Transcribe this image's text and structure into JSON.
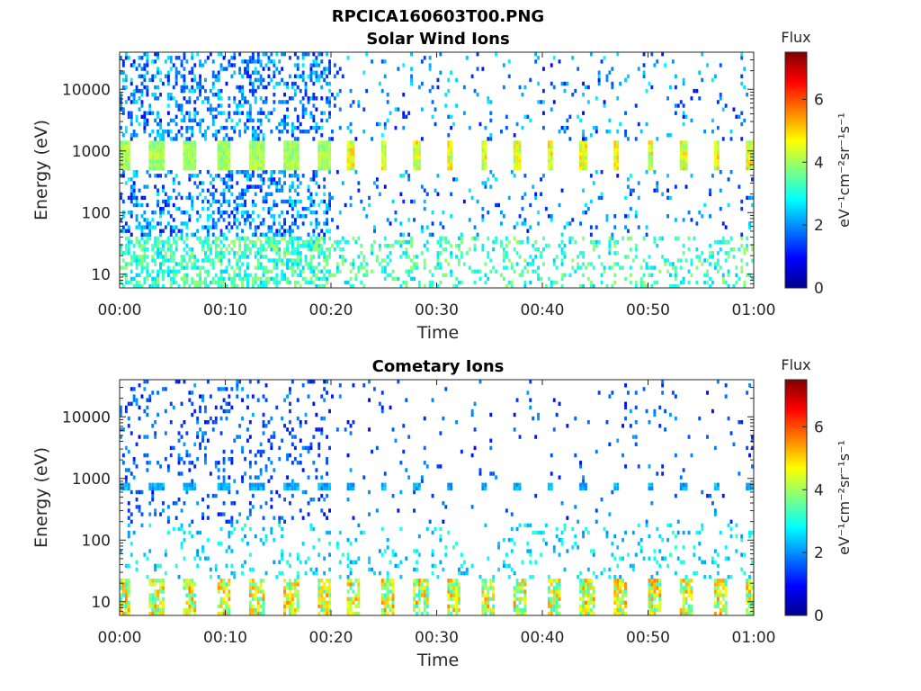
{
  "figure_title": "RPCICA160603T00.PNG",
  "colors": {
    "axis": "#262626",
    "grid": "#262626"
  },
  "colormap": "jet",
  "chart_data": [
    {
      "type": "heatmap",
      "title": "Solar Wind Ions",
      "xlabel": "Time",
      "ylabel": "Energy (eV)",
      "x_tick_labels": [
        "00:00",
        "00:10",
        "00:20",
        "00:30",
        "00:40",
        "00:50",
        "01:00"
      ],
      "x_ticks_min": [
        0,
        10,
        20,
        30,
        40,
        50,
        60
      ],
      "xlim_min": [
        0,
        60
      ],
      "y_scale": "log",
      "y_tick_labels": [
        "10",
        "100",
        "1000",
        "10000"
      ],
      "y_ticks": [
        10,
        100,
        1000,
        10000
      ],
      "ylim": [
        6,
        40000
      ],
      "colorbar": {
        "label": "Flux",
        "unit": "eV⁻¹cm⁻²sr⁻¹s⁻¹",
        "ticks": [
          "0",
          "2",
          "4",
          "6"
        ],
        "range": [
          0,
          7.5
        ]
      }
    },
    {
      "type": "heatmap",
      "title": "Cometary Ions",
      "xlabel": "Time",
      "ylabel": "Energy (eV)",
      "x_tick_labels": [
        "00:00",
        "00:10",
        "00:20",
        "00:30",
        "00:40",
        "00:50",
        "01:00"
      ],
      "x_ticks_min": [
        0,
        10,
        20,
        30,
        40,
        50,
        60
      ],
      "xlim_min": [
        0,
        60
      ],
      "y_scale": "log",
      "y_tick_labels": [
        "10",
        "100",
        "1000",
        "10000"
      ],
      "y_ticks": [
        10,
        100,
        1000,
        10000
      ],
      "ylim": [
        6,
        40000
      ],
      "colorbar": {
        "label": "Flux",
        "unit": "eV⁻¹cm⁻²sr⁻¹s⁻¹",
        "ticks": [
          "0",
          "2",
          "4",
          "6"
        ],
        "range": [
          0,
          7.5
        ]
      }
    }
  ]
}
